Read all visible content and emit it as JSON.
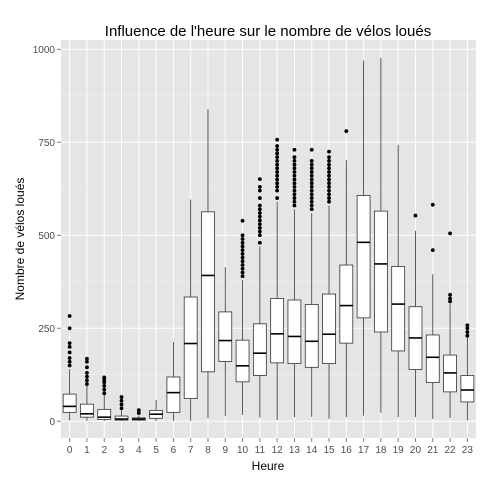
{
  "chart_data": {
    "type": "box",
    "title": "Influence de l'heure sur le nombre de vélos loués",
    "xlabel": "Heure",
    "ylabel": "Nombre de vélos loués",
    "categories": [
      "0",
      "1",
      "2",
      "3",
      "4",
      "5",
      "6",
      "7",
      "8",
      "9",
      "10",
      "11",
      "12",
      "13",
      "14",
      "15",
      "16",
      "17",
      "18",
      "19",
      "20",
      "21",
      "22",
      "23"
    ],
    "y_ticks": [
      0,
      250,
      500,
      750,
      1000
    ],
    "ylim": [
      -45,
      1025
    ],
    "grid": true,
    "panel_background": "#e5e5e5",
    "boxes": [
      {
        "hour": "0",
        "whisker_low": 2,
        "q1": 24,
        "median": 40,
        "q3": 73,
        "whisker_high": 140,
        "outliers": [
          150,
          160,
          170,
          185,
          200,
          210,
          250,
          283
        ]
      },
      {
        "hour": "1",
        "whisker_low": 1,
        "q1": 11,
        "median": 20,
        "q3": 46,
        "whisker_high": 95,
        "outliers": [
          100,
          110,
          120,
          130,
          145,
          160,
          168
        ]
      },
      {
        "hour": "2",
        "whisker_low": 1,
        "q1": 5,
        "median": 11,
        "q3": 32,
        "whisker_high": 70,
        "outliers": [
          75,
          85,
          95,
          105,
          112,
          118
        ]
      },
      {
        "hour": "3",
        "whisker_low": 1,
        "q1": 3,
        "median": 6,
        "q3": 14,
        "whisker_high": 30,
        "outliers": [
          35,
          45,
          55,
          65
        ]
      },
      {
        "hour": "4",
        "whisker_low": 1,
        "q1": 3,
        "median": 6,
        "q3": 9,
        "whisker_high": 15,
        "outliers": [
          22,
          30
        ]
      },
      {
        "hour": "5",
        "whisker_low": 1,
        "q1": 8,
        "median": 19,
        "q3": 29,
        "whisker_high": 57,
        "outliers": []
      },
      {
        "hour": "6",
        "whisker_low": 1,
        "q1": 24,
        "median": 77,
        "q3": 119,
        "whisker_high": 213,
        "outliers": []
      },
      {
        "hour": "7",
        "whisker_low": 1,
        "q1": 61,
        "median": 209,
        "q3": 334,
        "whisker_high": 596,
        "outliers": []
      },
      {
        "hour": "8",
        "whisker_low": 8,
        "q1": 133,
        "median": 392,
        "q3": 563,
        "whisker_high": 839,
        "outliers": []
      },
      {
        "hour": "9",
        "whisker_low": 14,
        "q1": 161,
        "median": 217,
        "q3": 294,
        "whisker_high": 414,
        "outliers": []
      },
      {
        "hour": "10",
        "whisker_low": 17,
        "q1": 106,
        "median": 149,
        "q3": 218,
        "whisker_high": 380,
        "outliers": [
          390,
          400,
          410,
          420,
          430,
          440,
          450,
          460,
          470,
          480,
          490,
          500,
          539
        ]
      },
      {
        "hour": "11",
        "whisker_low": 10,
        "q1": 123,
        "median": 183,
        "q3": 262,
        "whisker_high": 470,
        "outliers": [
          480,
          500,
          510,
          520,
          530,
          540,
          550,
          560,
          570,
          580,
          600,
          620,
          630,
          651
        ]
      },
      {
        "hour": "12",
        "whisker_low": 3,
        "q1": 157,
        "median": 235,
        "q3": 330,
        "whisker_high": 590,
        "outliers": [
          600,
          620,
          630,
          640,
          650,
          660,
          670,
          680,
          690,
          700,
          710,
          720,
          730,
          740,
          757
        ]
      },
      {
        "hour": "13",
        "whisker_low": 11,
        "q1": 155,
        "median": 228,
        "q3": 326,
        "whisker_high": 570,
        "outliers": [
          580,
          590,
          600,
          610,
          620,
          630,
          640,
          650,
          660,
          670,
          680,
          690,
          700,
          710,
          730
        ]
      },
      {
        "hour": "14",
        "whisker_low": 12,
        "q1": 145,
        "median": 215,
        "q3": 314,
        "whisker_high": 560,
        "outliers": [
          570,
          580,
          590,
          600,
          610,
          620,
          630,
          640,
          650,
          660,
          670,
          680,
          690,
          700,
          730
        ]
      },
      {
        "hour": "15",
        "whisker_low": 7,
        "q1": 155,
        "median": 234,
        "q3": 342,
        "whisker_high": 580,
        "outliers": [
          590,
          600,
          610,
          620,
          630,
          640,
          650,
          660,
          670,
          680,
          690,
          700,
          710,
          725
        ]
      },
      {
        "hour": "16",
        "whisker_low": 11,
        "q1": 210,
        "median": 311,
        "q3": 420,
        "whisker_high": 702,
        "outliers": [
          780
        ]
      },
      {
        "hour": "17",
        "whisker_low": 15,
        "q1": 278,
        "median": 481,
        "q3": 607,
        "whisker_high": 970,
        "outliers": []
      },
      {
        "hour": "18",
        "whisker_low": 23,
        "q1": 240,
        "median": 423,
        "q3": 565,
        "whisker_high": 977,
        "outliers": []
      },
      {
        "hour": "19",
        "whisker_low": 11,
        "q1": 189,
        "median": 315,
        "q3": 416,
        "whisker_high": 743,
        "outliers": []
      },
      {
        "hour": "20",
        "whisker_low": 11,
        "q1": 139,
        "median": 224,
        "q3": 308,
        "whisker_high": 512,
        "outliers": [
          553
        ]
      },
      {
        "hour": "21",
        "whisker_low": 6,
        "q1": 104,
        "median": 172,
        "q3": 232,
        "whisker_high": 395,
        "outliers": [
          460,
          582
        ]
      },
      {
        "hour": "22",
        "whisker_low": 9,
        "q1": 79,
        "median": 130,
        "q3": 178,
        "whisker_high": 315,
        "outliers": [
          322,
          330,
          340,
          505
        ]
      },
      {
        "hour": "23",
        "whisker_low": 2,
        "q1": 52,
        "median": 84,
        "q3": 123,
        "whisker_high": 225,
        "outliers": [
          230,
          240,
          250,
          258
        ]
      }
    ]
  }
}
